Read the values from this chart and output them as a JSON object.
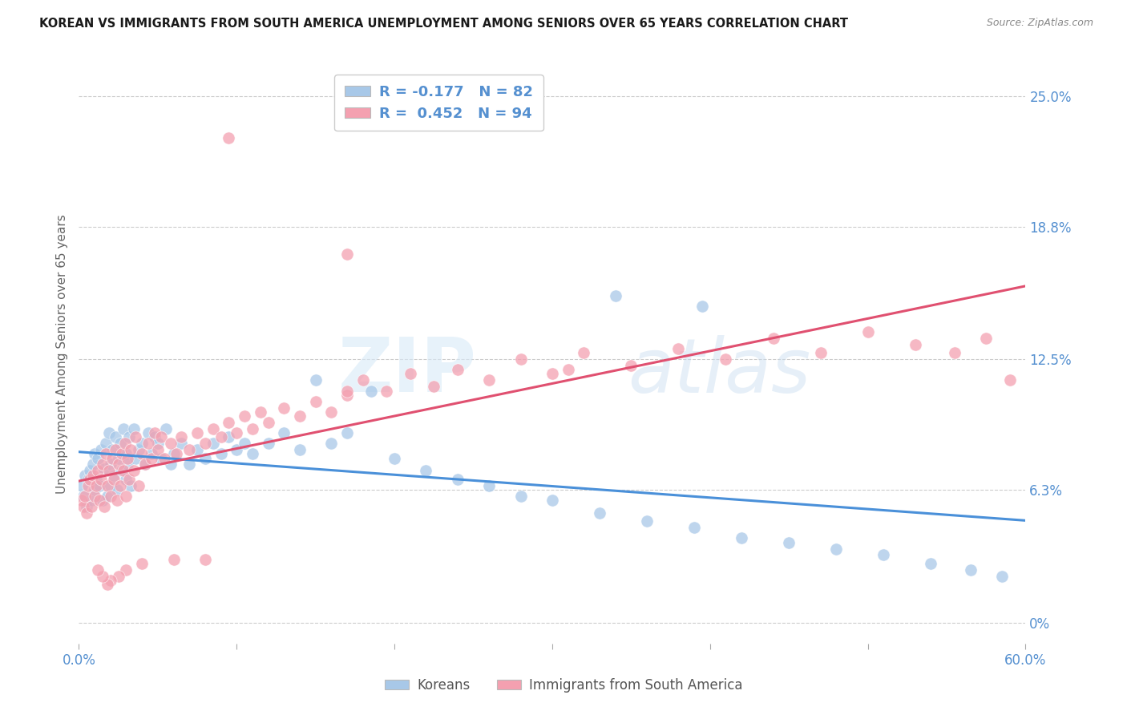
{
  "title": "KOREAN VS IMMIGRANTS FROM SOUTH AMERICA UNEMPLOYMENT AMONG SENIORS OVER 65 YEARS CORRELATION CHART",
  "source": "Source: ZipAtlas.com",
  "ylabel": "Unemployment Among Seniors over 65 years",
  "x_min": 0.0,
  "x_max": 0.6,
  "y_min": -0.01,
  "y_max": 0.265,
  "y_ticks_right": [
    0.0,
    0.063,
    0.125,
    0.188,
    0.25
  ],
  "y_tick_labels_right": [
    "0%",
    "6.3%",
    "12.5%",
    "18.8%",
    "25.0%"
  ],
  "blue_color": "#a8c8e8",
  "pink_color": "#f4a0b0",
  "blue_line_color": "#4a90d9",
  "pink_line_color": "#e05070",
  "label_color": "#5590d0",
  "legend_label_blue": "Koreans",
  "legend_label_pink": "Immigrants from South America",
  "R_blue": -0.177,
  "N_blue": 82,
  "R_pink": 0.452,
  "N_pink": 94,
  "background_color": "#ffffff",
  "watermark_zip": "ZIP",
  "watermark_atlas": "atlas",
  "blue_x": [
    0.002,
    0.003,
    0.004,
    0.005,
    0.006,
    0.007,
    0.008,
    0.009,
    0.01,
    0.01,
    0.011,
    0.012,
    0.013,
    0.014,
    0.015,
    0.016,
    0.017,
    0.018,
    0.019,
    0.02,
    0.02,
    0.021,
    0.022,
    0.023,
    0.024,
    0.025,
    0.026,
    0.027,
    0.028,
    0.03,
    0.03,
    0.031,
    0.032,
    0.033,
    0.035,
    0.036,
    0.038,
    0.04,
    0.042,
    0.044,
    0.046,
    0.048,
    0.05,
    0.052,
    0.055,
    0.058,
    0.06,
    0.065,
    0.07,
    0.075,
    0.08,
    0.085,
    0.09,
    0.095,
    0.1,
    0.105,
    0.11,
    0.12,
    0.13,
    0.14,
    0.15,
    0.16,
    0.17,
    0.185,
    0.2,
    0.22,
    0.24,
    0.26,
    0.28,
    0.3,
    0.33,
    0.36,
    0.39,
    0.42,
    0.45,
    0.48,
    0.51,
    0.54,
    0.565,
    0.585,
    0.395,
    0.34
  ],
  "blue_y": [
    0.065,
    0.06,
    0.07,
    0.055,
    0.068,
    0.072,
    0.058,
    0.075,
    0.063,
    0.08,
    0.068,
    0.078,
    0.065,
    0.082,
    0.058,
    0.073,
    0.085,
    0.06,
    0.09,
    0.075,
    0.065,
    0.082,
    0.07,
    0.088,
    0.063,
    0.078,
    0.085,
    0.072,
    0.092,
    0.068,
    0.08,
    0.075,
    0.088,
    0.065,
    0.092,
    0.078,
    0.082,
    0.085,
    0.075,
    0.09,
    0.08,
    0.088,
    0.085,
    0.078,
    0.092,
    0.075,
    0.08,
    0.085,
    0.075,
    0.082,
    0.078,
    0.085,
    0.08,
    0.088,
    0.082,
    0.085,
    0.08,
    0.085,
    0.09,
    0.082,
    0.115,
    0.085,
    0.09,
    0.11,
    0.078,
    0.072,
    0.068,
    0.065,
    0.06,
    0.058,
    0.052,
    0.048,
    0.045,
    0.04,
    0.038,
    0.035,
    0.032,
    0.028,
    0.025,
    0.022,
    0.15,
    0.155
  ],
  "pink_x": [
    0.002,
    0.003,
    0.004,
    0.005,
    0.006,
    0.007,
    0.008,
    0.009,
    0.01,
    0.011,
    0.012,
    0.013,
    0.014,
    0.015,
    0.016,
    0.017,
    0.018,
    0.019,
    0.02,
    0.021,
    0.022,
    0.023,
    0.024,
    0.025,
    0.026,
    0.027,
    0.028,
    0.029,
    0.03,
    0.031,
    0.032,
    0.033,
    0.035,
    0.036,
    0.038,
    0.04,
    0.042,
    0.044,
    0.046,
    0.048,
    0.05,
    0.052,
    0.054,
    0.058,
    0.062,
    0.065,
    0.07,
    0.075,
    0.08,
    0.085,
    0.09,
    0.095,
    0.1,
    0.105,
    0.11,
    0.115,
    0.12,
    0.13,
    0.14,
    0.15,
    0.16,
    0.17,
    0.18,
    0.195,
    0.21,
    0.225,
    0.24,
    0.26,
    0.28,
    0.3,
    0.32,
    0.35,
    0.38,
    0.41,
    0.44,
    0.47,
    0.5,
    0.53,
    0.555,
    0.575,
    0.59,
    0.31,
    0.17,
    0.17,
    0.095,
    0.08,
    0.06,
    0.04,
    0.03,
    0.025,
    0.02,
    0.018,
    0.015,
    0.012
  ],
  "pink_y": [
    0.058,
    0.055,
    0.06,
    0.052,
    0.065,
    0.068,
    0.055,
    0.07,
    0.06,
    0.065,
    0.072,
    0.058,
    0.068,
    0.075,
    0.055,
    0.08,
    0.065,
    0.072,
    0.06,
    0.078,
    0.068,
    0.082,
    0.058,
    0.075,
    0.065,
    0.08,
    0.072,
    0.085,
    0.06,
    0.078,
    0.068,
    0.082,
    0.072,
    0.088,
    0.065,
    0.08,
    0.075,
    0.085,
    0.078,
    0.09,
    0.082,
    0.088,
    0.078,
    0.085,
    0.08,
    0.088,
    0.082,
    0.09,
    0.085,
    0.092,
    0.088,
    0.095,
    0.09,
    0.098,
    0.092,
    0.1,
    0.095,
    0.102,
    0.098,
    0.105,
    0.1,
    0.108,
    0.115,
    0.11,
    0.118,
    0.112,
    0.12,
    0.115,
    0.125,
    0.118,
    0.128,
    0.122,
    0.13,
    0.125,
    0.135,
    0.128,
    0.138,
    0.132,
    0.128,
    0.135,
    0.115,
    0.12,
    0.175,
    0.11,
    0.23,
    0.03,
    0.03,
    0.028,
    0.025,
    0.022,
    0.02,
    0.018,
    0.022,
    0.025
  ]
}
